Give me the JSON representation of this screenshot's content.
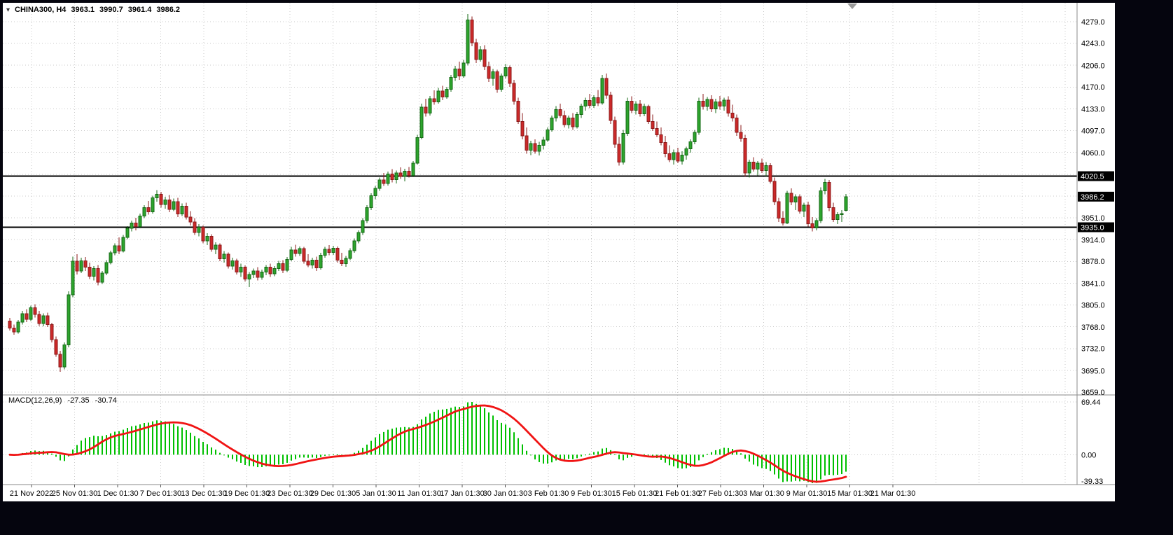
{
  "window": {
    "expand_arrow": "▾"
  },
  "header": {
    "title": "CHINA300, H4",
    "open": "3963.1",
    "high": "3990.7",
    "low": "3961.4",
    "close": "3986.2"
  },
  "indicator_header": {
    "name": "MACD(12,26,9)",
    "main_value": "-27.35",
    "signal_value": "-30.74"
  },
  "price_axis": {
    "ticks": [
      {
        "label": "4279.0",
        "price": 4279.0
      },
      {
        "label": "4243.0",
        "price": 4243.0
      },
      {
        "label": "4206.0",
        "price": 4206.0
      },
      {
        "label": "4170.0",
        "price": 4170.0
      },
      {
        "label": "4133.0",
        "price": 4133.0
      },
      {
        "label": "4097.0",
        "price": 4097.0
      },
      {
        "label": "4060.0",
        "price": 4060.0
      },
      {
        "label": "3951.0",
        "price": 3951.0
      },
      {
        "label": "3914.0",
        "price": 3914.0
      },
      {
        "label": "3878.0",
        "price": 3878.0
      },
      {
        "label": "3841.0",
        "price": 3841.0
      },
      {
        "label": "3805.0",
        "price": 3805.0
      },
      {
        "label": "3768.0",
        "price": 3768.0
      },
      {
        "label": "3732.0",
        "price": 3732.0
      },
      {
        "label": "3695.0",
        "price": 3695.0
      },
      {
        "label": "3659.0",
        "price": 3659.0
      }
    ],
    "badges": [
      {
        "label": "4020.5",
        "price": 4020.5,
        "kind": "level"
      },
      {
        "label": "3986.2",
        "price": 3986.2,
        "kind": "current"
      },
      {
        "label": "3935.0",
        "price": 3935.0,
        "kind": "level"
      }
    ]
  },
  "macd_axis": {
    "ticks": [
      {
        "label": "69.44",
        "value": 69.44
      },
      {
        "label": "0.00",
        "value": 0
      },
      {
        "label": "-39.33",
        "value": -39.33
      }
    ]
  },
  "time_axis": {
    "labels": [
      "21 Nov 2022",
      "25 Nov 01:30",
      "1 Dec 01:30",
      "7 Dec 01:30",
      "13 Dec 01:30",
      "19 Dec 01:30",
      "23 Dec 01:30",
      "29 Dec 01:30",
      "5 Jan 01:30",
      "11 Jan 01:30",
      "17 Jan 01:30",
      "30 Jan 01:30",
      "3 Feb 01:30",
      "9 Feb 01:30",
      "15 Feb 01:30",
      "21 Feb 01:30",
      "27 Feb 01:30",
      "3 Mar 01:30",
      "9 Mar 01:30",
      "15 Mar 01:30",
      "21 Mar 01:30"
    ]
  },
  "colors": {
    "bull_fill": "#2da52d",
    "bull_stroke": "#156815",
    "bear_fill": "#cc2929",
    "bear_stroke": "#8b1a1a",
    "grid": "#c8c8c8",
    "level": "#000000",
    "macd_hist": "#00c000",
    "macd_signal": "#f01414",
    "frame": "#8a8a8a",
    "badge_bg": "#000000",
    "badge_text": "#ffffff",
    "window_bg": "#05050e"
  },
  "chart_data": {
    "type": "candlestick",
    "title": "CHINA300, H4",
    "current_bar": {
      "open": 3963.1,
      "high": 3990.7,
      "low": 3961.4,
      "close": 3986.2
    },
    "y_axis": {
      "min": 3659.0,
      "max": 4279.0
    },
    "horizontal_levels": [
      4020.5,
      3935.0
    ],
    "current_price": 3986.2,
    "x_labels": [
      "21 Nov 2022",
      "25 Nov 01:30",
      "1 Dec 01:30",
      "7 Dec 01:30",
      "13 Dec 01:30",
      "19 Dec 01:30",
      "23 Dec 01:30",
      "29 Dec 01:30",
      "5 Jan 01:30",
      "11 Jan 01:30",
      "17 Jan 01:30",
      "30 Jan 01:30",
      "3 Feb 01:30",
      "9 Feb 01:30",
      "15 Feb 01:30",
      "21 Feb 01:30",
      "27 Feb 01:30",
      "3 Mar 01:30",
      "9 Mar 01:30",
      "15 Mar 01:30",
      "21 Mar 01:30"
    ],
    "candles": [
      [
        3778,
        3783,
        3762,
        3766
      ],
      [
        3766,
        3772,
        3755,
        3760
      ],
      [
        3760,
        3780,
        3757,
        3776
      ],
      [
        3776,
        3795,
        3772,
        3790
      ],
      [
        3790,
        3798,
        3776,
        3781
      ],
      [
        3781,
        3804,
        3778,
        3800
      ],
      [
        3800,
        3806,
        3784,
        3789
      ],
      [
        3789,
        3795,
        3770,
        3774
      ],
      [
        3774,
        3791,
        3769,
        3787
      ],
      [
        3787,
        3792,
        3768,
        3772
      ],
      [
        3772,
        3775,
        3742,
        3747
      ],
      [
        3747,
        3752,
        3718,
        3722
      ],
      [
        3722,
        3728,
        3693,
        3701
      ],
      [
        3701,
        3742,
        3697,
        3738
      ],
      [
        3738,
        3828,
        3734,
        3822
      ],
      [
        3822,
        3886,
        3818,
        3878
      ],
      [
        3878,
        3890,
        3856,
        3862
      ],
      [
        3862,
        3884,
        3858,
        3879
      ],
      [
        3879,
        3885,
        3862,
        3868
      ],
      [
        3868,
        3876,
        3848,
        3853
      ],
      [
        3853,
        3870,
        3846,
        3866
      ],
      [
        3866,
        3872,
        3838,
        3843
      ],
      [
        3843,
        3862,
        3840,
        3858
      ],
      [
        3858,
        3880,
        3855,
        3876
      ],
      [
        3876,
        3896,
        3873,
        3892
      ],
      [
        3892,
        3908,
        3888,
        3904
      ],
      [
        3904,
        3918,
        3890,
        3895
      ],
      [
        3895,
        3922,
        3893,
        3918
      ],
      [
        3918,
        3937,
        3915,
        3933
      ],
      [
        3933,
        3946,
        3928,
        3942
      ],
      [
        3942,
        3951,
        3930,
        3936
      ],
      [
        3936,
        3958,
        3933,
        3954
      ],
      [
        3954,
        3972,
        3950,
        3968
      ],
      [
        3968,
        3979,
        3956,
        3961
      ],
      [
        3961,
        3988,
        3958,
        3984
      ],
      [
        3984,
        3997,
        3978,
        3990
      ],
      [
        3990,
        3994,
        3968,
        3973
      ],
      [
        3973,
        3986,
        3966,
        3981
      ],
      [
        3981,
        3989,
        3960,
        3965
      ],
      [
        3965,
        3983,
        3962,
        3978
      ],
      [
        3978,
        3984,
        3952,
        3957
      ],
      [
        3957,
        3975,
        3954,
        3970
      ],
      [
        3970,
        3976,
        3948,
        3952
      ],
      [
        3952,
        3962,
        3938,
        3944
      ],
      [
        3944,
        3950,
        3922,
        3926
      ],
      [
        3926,
        3940,
        3920,
        3935
      ],
      [
        3935,
        3938,
        3908,
        3912
      ],
      [
        3912,
        3925,
        3905,
        3920
      ],
      [
        3920,
        3923,
        3894,
        3898
      ],
      [
        3898,
        3910,
        3890,
        3905
      ],
      [
        3905,
        3908,
        3878,
        3882
      ],
      [
        3882,
        3895,
        3876,
        3890
      ],
      [
        3890,
        3893,
        3866,
        3870
      ],
      [
        3870,
        3884,
        3864,
        3879
      ],
      [
        3879,
        3882,
        3856,
        3860
      ],
      [
        3860,
        3874,
        3852,
        3868
      ],
      [
        3868,
        3871,
        3844,
        3848
      ],
      [
        3848,
        3860,
        3835,
        3856
      ],
      [
        3856,
        3866,
        3850,
        3862
      ],
      [
        3862,
        3868,
        3846,
        3851
      ],
      [
        3851,
        3864,
        3847,
        3860
      ],
      [
        3860,
        3872,
        3855,
        3868
      ],
      [
        3868,
        3874,
        3852,
        3857
      ],
      [
        3857,
        3870,
        3853,
        3866
      ],
      [
        3866,
        3879,
        3862,
        3874
      ],
      [
        3874,
        3880,
        3858,
        3863
      ],
      [
        3863,
        3885,
        3860,
        3881
      ],
      [
        3881,
        3902,
        3878,
        3897
      ],
      [
        3897,
        3906,
        3886,
        3891
      ],
      [
        3891,
        3903,
        3887,
        3899
      ],
      [
        3899,
        3902,
        3874,
        3878
      ],
      [
        3878,
        3890,
        3868,
        3872
      ],
      [
        3872,
        3884,
        3866,
        3880
      ],
      [
        3880,
        3886,
        3862,
        3867
      ],
      [
        3867,
        3892,
        3864,
        3888
      ],
      [
        3888,
        3902,
        3884,
        3898
      ],
      [
        3898,
        3905,
        3888,
        3893
      ],
      [
        3893,
        3904,
        3889,
        3900
      ],
      [
        3900,
        3903,
        3876,
        3880
      ],
      [
        3880,
        3892,
        3870,
        3874
      ],
      [
        3874,
        3887,
        3869,
        3883
      ],
      [
        3883,
        3900,
        3880,
        3896
      ],
      [
        3896,
        3916,
        3892,
        3912
      ],
      [
        3912,
        3930,
        3908,
        3926
      ],
      [
        3926,
        3950,
        3922,
        3946
      ],
      [
        3946,
        3972,
        3942,
        3968
      ],
      [
        3968,
        3992,
        3964,
        3988
      ],
      [
        3988,
        4004,
        3982,
        4000
      ],
      [
        4000,
        4018,
        3996,
        4014
      ],
      [
        4014,
        4026,
        4004,
        4008
      ],
      [
        4008,
        4028,
        4005,
        4024
      ],
      [
        4024,
        4032,
        4010,
        4015
      ],
      [
        4015,
        4030,
        4008,
        4026
      ],
      [
        4026,
        4035,
        4016,
        4020
      ],
      [
        4020,
        4033,
        4012,
        4029
      ],
      [
        4029,
        4036,
        4018,
        4022
      ],
      [
        4022,
        4046,
        4019,
        4042
      ],
      [
        4042,
        4090,
        4040,
        4085
      ],
      [
        4085,
        4142,
        4082,
        4136
      ],
      [
        4136,
        4150,
        4120,
        4126
      ],
      [
        4126,
        4155,
        4122,
        4150
      ],
      [
        4150,
        4164,
        4140,
        4145
      ],
      [
        4145,
        4168,
        4142,
        4163
      ],
      [
        4163,
        4172,
        4148,
        4153
      ],
      [
        4153,
        4170,
        4150,
        4166
      ],
      [
        4166,
        4190,
        4162,
        4186
      ],
      [
        4186,
        4205,
        4180,
        4200
      ],
      [
        4200,
        4212,
        4182,
        4188
      ],
      [
        4188,
        4215,
        4185,
        4210
      ],
      [
        4210,
        4292,
        4206,
        4282
      ],
      [
        4282,
        4288,
        4238,
        4244
      ],
      [
        4244,
        4250,
        4210,
        4216
      ],
      [
        4216,
        4238,
        4212,
        4232
      ],
      [
        4232,
        4240,
        4198,
        4204
      ],
      [
        4204,
        4212,
        4178,
        4184
      ],
      [
        4184,
        4200,
        4172,
        4195
      ],
      [
        4195,
        4199,
        4160,
        4166
      ],
      [
        4166,
        4192,
        4162,
        4188
      ],
      [
        4188,
        4208,
        4184,
        4202
      ],
      [
        4202,
        4206,
        4170,
        4176
      ],
      [
        4176,
        4182,
        4140,
        4146
      ],
      [
        4146,
        4152,
        4108,
        4112
      ],
      [
        4112,
        4126,
        4082,
        4088
      ],
      [
        4088,
        4102,
        4058,
        4064
      ],
      [
        4064,
        4080,
        4056,
        4075
      ],
      [
        4075,
        4082,
        4058,
        4062
      ],
      [
        4062,
        4078,
        4055,
        4072
      ],
      [
        4072,
        4086,
        4065,
        4081
      ],
      [
        4081,
        4102,
        4078,
        4098
      ],
      [
        4098,
        4122,
        4095,
        4118
      ],
      [
        4118,
        4138,
        4112,
        4132
      ],
      [
        4132,
        4142,
        4118,
        4122
      ],
      [
        4122,
        4130,
        4102,
        4107
      ],
      [
        4107,
        4122,
        4100,
        4118
      ],
      [
        4118,
        4126,
        4098,
        4103
      ],
      [
        4103,
        4128,
        4100,
        4124
      ],
      [
        4124,
        4142,
        4118,
        4138
      ],
      [
        4138,
        4152,
        4130,
        4147
      ],
      [
        4147,
        4158,
        4134,
        4139
      ],
      [
        4139,
        4156,
        4135,
        4152
      ],
      [
        4152,
        4165,
        4138,
        4143
      ],
      [
        4143,
        4190,
        4140,
        4184
      ],
      [
        4184,
        4192,
        4150,
        4156
      ],
      [
        4156,
        4162,
        4108,
        4114
      ],
      [
        4114,
        4120,
        4068,
        4074
      ],
      [
        4074,
        4086,
        4038,
        4044
      ],
      [
        4044,
        4098,
        4040,
        4092
      ],
      [
        4092,
        4152,
        4088,
        4146
      ],
      [
        4146,
        4154,
        4126,
        4131
      ],
      [
        4131,
        4146,
        4124,
        4141
      ],
      [
        4141,
        4148,
        4120,
        4125
      ],
      [
        4125,
        4142,
        4121,
        4137
      ],
      [
        4137,
        4140,
        4108,
        4112
      ],
      [
        4112,
        4124,
        4096,
        4100
      ],
      [
        4100,
        4112,
        4086,
        4090
      ],
      [
        4090,
        4102,
        4072,
        4077
      ],
      [
        4077,
        4088,
        4052,
        4058
      ],
      [
        4058,
        4072,
        4044,
        4048
      ],
      [
        4048,
        4065,
        4040,
        4060
      ],
      [
        4060,
        4068,
        4042,
        4046
      ],
      [
        4046,
        4062,
        4040,
        4056
      ],
      [
        4056,
        4070,
        4048,
        4066
      ],
      [
        4066,
        4082,
        4060,
        4078
      ],
      [
        4078,
        4098,
        4074,
        4094
      ],
      [
        4094,
        4152,
        4090,
        4146
      ],
      [
        4146,
        4158,
        4132,
        4137
      ],
      [
        4137,
        4153,
        4130,
        4149
      ],
      [
        4149,
        4156,
        4128,
        4133
      ],
      [
        4133,
        4150,
        4126,
        4145
      ],
      [
        4145,
        4155,
        4132,
        4138
      ],
      [
        4138,
        4152,
        4130,
        4148
      ],
      [
        4148,
        4154,
        4120,
        4126
      ],
      [
        4126,
        4140,
        4112,
        4118
      ],
      [
        4118,
        4124,
        4088,
        4094
      ],
      [
        4094,
        4106,
        4078,
        4084
      ],
      [
        4084,
        4090,
        4020,
        4026
      ],
      [
        4026,
        4048,
        4018,
        4044
      ],
      [
        4044,
        4052,
        4028,
        4032
      ],
      [
        4032,
        4046,
        4022,
        4042
      ],
      [
        4042,
        4050,
        4026,
        4030
      ],
      [
        4030,
        4044,
        4020,
        4038
      ],
      [
        4038,
        4042,
        4008,
        4012
      ],
      [
        4012,
        4018,
        3972,
        3978
      ],
      [
        3978,
        3984,
        3944,
        3950
      ],
      [
        3950,
        3962,
        3938,
        3942
      ],
      [
        3942,
        3996,
        3940,
        3992
      ],
      [
        3992,
        4000,
        3972,
        3977
      ],
      [
        3977,
        3990,
        3964,
        3986
      ],
      [
        3986,
        3990,
        3958,
        3962
      ],
      [
        3962,
        3976,
        3952,
        3972
      ],
      [
        3972,
        3978,
        3936,
        3941
      ],
      [
        3941,
        3952,
        3928,
        3934
      ],
      [
        3934,
        3950,
        3930,
        3946
      ],
      [
        3946,
        4002,
        3942,
        3996
      ],
      [
        3996,
        4016,
        3990,
        4010
      ],
      [
        4010,
        4014,
        3962,
        3968
      ],
      [
        3968,
        3976,
        3944,
        3948
      ],
      [
        3948,
        3960,
        3940,
        3956
      ],
      [
        3956,
        3964,
        3944,
        3958
      ],
      [
        3963.1,
        3990.7,
        3961.4,
        3986.2
      ]
    ],
    "macd": {
      "params": [
        12,
        26,
        9
      ],
      "main_last": -27.35,
      "signal_last": -30.74,
      "axis_ticks": [
        69.44,
        0.0,
        -39.33
      ]
    }
  }
}
